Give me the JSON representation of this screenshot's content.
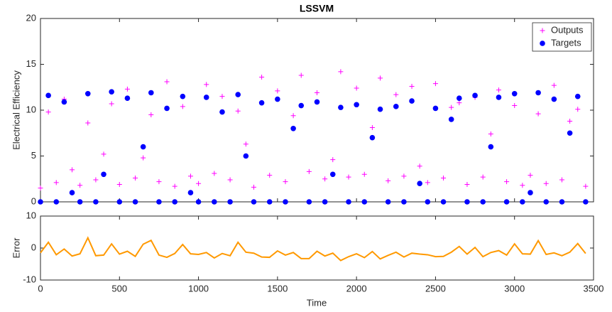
{
  "chart_data": [
    {
      "type": "scatter",
      "title": "LSSVM",
      "y_label": "Electrical Efficiency",
      "x": [
        0,
        50,
        100,
        150,
        200,
        250,
        300,
        350,
        400,
        450,
        500,
        550,
        600,
        650,
        700,
        750,
        800,
        850,
        900,
        950,
        1000,
        1050,
        1100,
        1150,
        1200,
        1250,
        1300,
        1350,
        1400,
        1450,
        1500,
        1550,
        1600,
        1650,
        1700,
        1750,
        1800,
        1850,
        1900,
        1950,
        2000,
        2050,
        2100,
        2150,
        2200,
        2250,
        2300,
        2350,
        2400,
        2450,
        2500,
        2550,
        2600,
        2650,
        2700,
        2750,
        2800,
        2850,
        2900,
        2950,
        3000,
        3050,
        3100,
        3150,
        3200,
        3250,
        3300,
        3350,
        3400,
        3450
      ],
      "series": [
        {
          "name": "Outputs",
          "color": "#ff00ff",
          "marker": "plus",
          "values": [
            1.5,
            9.8,
            2.1,
            11.2,
            3.5,
            1.8,
            8.6,
            2.4,
            5.2,
            10.7,
            1.9,
            12.3,
            2.6,
            4.8,
            9.5,
            2.2,
            13.1,
            1.7,
            10.4,
            2.8,
            2.0,
            12.8,
            3.1,
            11.5,
            2.4,
            9.9,
            6.3,
            1.6,
            13.6,
            2.9,
            12.1,
            2.2,
            9.4,
            13.8,
            3.3,
            11.9,
            2.5,
            4.6,
            14.2,
            2.7,
            12.4,
            3.0,
            8.1,
            13.5,
            2.3,
            11.7,
            2.8,
            12.6,
            3.9,
            2.1,
            12.9,
            2.6,
            10.3,
            10.8,
            1.9,
            11.4,
            2.7,
            7.4,
            12.2,
            2.2,
            10.5,
            1.8,
            2.9,
            9.6,
            2.0,
            12.7,
            2.4,
            8.8,
            10.1,
            1.7
          ]
        },
        {
          "name": "Targets",
          "color": "#0000ff",
          "marker": "circle",
          "values": [
            0,
            11.6,
            0,
            10.9,
            1,
            0,
            11.8,
            0,
            3,
            12,
            0,
            11.3,
            0,
            6,
            11.9,
            0,
            10.2,
            0,
            11.5,
            1,
            0,
            11.4,
            0,
            9.8,
            0,
            11.7,
            5,
            0,
            10.8,
            0,
            11.2,
            0,
            8,
            10.5,
            0,
            10.9,
            0,
            3,
            10.3,
            0,
            10.6,
            0,
            7,
            10.1,
            0,
            10.4,
            0,
            11,
            2,
            0,
            10.2,
            0,
            9,
            11.3,
            0,
            11.6,
            0,
            6,
            11.4,
            0,
            11.8,
            0,
            1,
            11.9,
            0,
            11.2,
            0,
            7.5,
            11.5,
            0
          ]
        }
      ],
      "xlim": [
        0,
        3500
      ],
      "xticks": [
        0,
        500,
        1000,
        1500,
        2000,
        2500,
        3000,
        3500
      ],
      "ylim": [
        0,
        20
      ],
      "yticks": [
        0,
        5,
        10,
        15,
        20
      ],
      "legend": "upper right"
    },
    {
      "type": "line",
      "y_label": "Error",
      "x_label": "Time",
      "x": [
        0,
        50,
        100,
        150,
        200,
        250,
        300,
        350,
        400,
        450,
        500,
        550,
        600,
        650,
        700,
        750,
        800,
        850,
        900,
        950,
        1000,
        1050,
        1100,
        1150,
        1200,
        1250,
        1300,
        1350,
        1400,
        1450,
        1500,
        1550,
        1600,
        1650,
        1700,
        1750,
        1800,
        1850,
        1900,
        1950,
        2000,
        2050,
        2100,
        2150,
        2200,
        2250,
        2300,
        2350,
        2400,
        2450,
        2500,
        2550,
        2600,
        2650,
        2700,
        2750,
        2800,
        2850,
        2900,
        2950,
        3000,
        3050,
        3100,
        3150,
        3200,
        3250,
        3300,
        3350,
        3400,
        3450
      ],
      "series": [
        {
          "name": "Error",
          "color": "#ff9900",
          "values": [
            -1.5,
            1.8,
            -2.1,
            -0.3,
            -2.5,
            -1.8,
            3.2,
            -2.4,
            -2.2,
            1.3,
            -1.9,
            -1.0,
            -2.6,
            1.2,
            2.4,
            -2.2,
            -2.9,
            -1.7,
            1.1,
            -1.8,
            -2.0,
            -1.4,
            -3.1,
            -1.7,
            -2.4,
            1.8,
            -1.3,
            -1.6,
            -2.8,
            -2.9,
            -0.9,
            -2.2,
            -1.4,
            -3.3,
            -3.3,
            -1.0,
            -2.5,
            -1.6,
            -3.9,
            -2.7,
            -1.8,
            -3.0,
            -1.1,
            -3.4,
            -2.3,
            -1.3,
            -2.8,
            -1.6,
            -1.9,
            -2.1,
            -2.7,
            -2.6,
            -1.3,
            0.5,
            -1.9,
            0.2,
            -2.7,
            -1.4,
            -0.8,
            -2.2,
            1.3,
            -1.8,
            -1.9,
            2.3,
            -2.0,
            -1.5,
            -2.4,
            -1.3,
            1.4,
            -1.7
          ]
        }
      ],
      "xlim": [
        0,
        3500
      ],
      "xticks": [
        0,
        500,
        1000,
        1500,
        2000,
        2500,
        3000,
        3500
      ],
      "ylim": [
        -10,
        10
      ],
      "yticks": [
        -10,
        0,
        10
      ]
    }
  ]
}
